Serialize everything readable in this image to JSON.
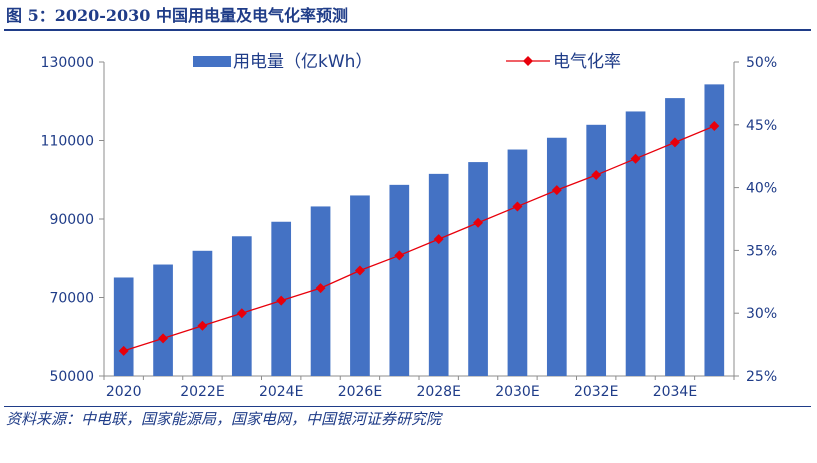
{
  "figure": {
    "title": "图 5：2020-2030 中国用电量及电气化率预测",
    "source": "资料来源：中电联，国家能源局，国家电网，中国银河证券研究院",
    "accent_color": "#1f3c88"
  },
  "chart_data": {
    "type": "bar",
    "x": [
      "2020",
      "2021",
      "2022E",
      "2023E",
      "2024E",
      "2025E",
      "2026E",
      "2027E",
      "2028E",
      "2029E",
      "2030E",
      "2031E",
      "2032E",
      "2033E",
      "2034E",
      "2035E"
    ],
    "x_tick_labels": [
      "2020",
      "2022E",
      "2024E",
      "2026E",
      "2028E",
      "2030E",
      "2032E",
      "2034E"
    ],
    "series": [
      {
        "name": "用电量（亿kWh）",
        "type": "bar",
        "axis": "left",
        "color": "#4472c4",
        "values": [
          75100,
          78400,
          81900,
          85600,
          89300,
          93200,
          96000,
          98700,
          101500,
          104500,
          107700,
          110700,
          114000,
          117400,
          120800,
          124300
        ]
      },
      {
        "name": "电气化率",
        "type": "line",
        "axis": "right",
        "color": "#e8000b",
        "marker": "diamond",
        "values": [
          27.0,
          28.0,
          29.0,
          30.0,
          31.0,
          32.0,
          33.4,
          34.6,
          35.9,
          37.2,
          38.5,
          39.8,
          41.0,
          42.3,
          43.6,
          44.9
        ]
      }
    ],
    "y_left": {
      "ticks": [
        50000,
        70000,
        90000,
        110000,
        130000
      ],
      "tick_labels": [
        "50000",
        "70000",
        "90000",
        "110000",
        "130000"
      ],
      "ylim": [
        50000,
        130000
      ]
    },
    "y_right": {
      "ticks": [
        25,
        30,
        35,
        40,
        45,
        50
      ],
      "tick_labels": [
        "25%",
        "30%",
        "35%",
        "40%",
        "45%",
        "50%"
      ],
      "ylim": [
        25,
        50
      ]
    },
    "legend_position": "top",
    "grid": false
  }
}
